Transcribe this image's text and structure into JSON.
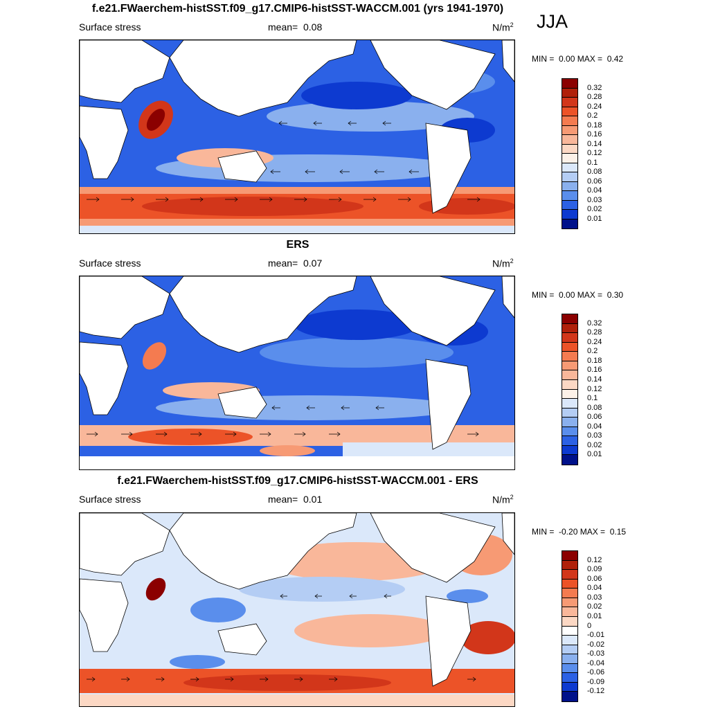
{
  "season": "JJA",
  "panels": [
    {
      "title": "f.e21.FWaerchem-histSST.f09_g17.CMIP6-histSST-WACCM.001 (yrs 1941-1970)",
      "variable": "Surface stress",
      "mean_label": "mean=",
      "mean_value": "0.08",
      "units_base": "N/m",
      "units_exp": "2",
      "min_label": "MIN =",
      "min_value": "0.00",
      "max_label": "MAX =",
      "max_value": "0.42",
      "colorbar_levels": [
        "0.32",
        "0.28",
        "0.24",
        "0.2",
        "0.18",
        "0.16",
        "0.14",
        "0.12",
        "0.1",
        "0.08",
        "0.06",
        "0.04",
        "0.03",
        "0.02",
        "0.01"
      ],
      "colorbar_colors": [
        "#8b0000",
        "#b0200a",
        "#d2361a",
        "#ec5328",
        "#f47b50",
        "#f79a74",
        "#f9b79a",
        "#fcd8c4",
        "#fcf1e8",
        "#dbe8fa",
        "#b4cdf4",
        "#8ab0ee",
        "#5a8eec",
        "#2c61e4",
        "#0d3ad0",
        "#00118a"
      ]
    },
    {
      "title": "ERS",
      "variable": "Surface stress",
      "mean_label": "mean=",
      "mean_value": "0.07",
      "units_base": "N/m",
      "units_exp": "2",
      "min_label": "MIN =",
      "min_value": "0.00",
      "max_label": "MAX =",
      "max_value": "0.30",
      "colorbar_levels": [
        "0.32",
        "0.28",
        "0.24",
        "0.2",
        "0.18",
        "0.16",
        "0.14",
        "0.12",
        "0.1",
        "0.08",
        "0.06",
        "0.04",
        "0.03",
        "0.02",
        "0.01"
      ],
      "colorbar_colors": [
        "#8b0000",
        "#b0200a",
        "#d2361a",
        "#ec5328",
        "#f47b50",
        "#f79a74",
        "#f9b79a",
        "#fcd8c4",
        "#fcf1e8",
        "#dbe8fa",
        "#b4cdf4",
        "#8ab0ee",
        "#5a8eec",
        "#2c61e4",
        "#0d3ad0",
        "#00118a"
      ]
    },
    {
      "title": "f.e21.FWaerchem-histSST.f09_g17.CMIP6-histSST-WACCM.001 - ERS",
      "variable": "Surface stress",
      "mean_label": "mean=",
      "mean_value": "0.01",
      "units_base": "N/m",
      "units_exp": "2",
      "min_label": "MIN =",
      "min_value": "-0.20",
      "max_label": "MAX =",
      "max_value": "0.15",
      "colorbar_levels": [
        "0.12",
        "0.09",
        "0.06",
        "0.04",
        "0.03",
        "0.02",
        "0.01",
        "0",
        "-0.01",
        "-0.02",
        "-0.03",
        "-0.04",
        "-0.06",
        "-0.09",
        "-0.12"
      ],
      "colorbar_colors": [
        "#8b0000",
        "#b0200a",
        "#d2361a",
        "#ec5328",
        "#f47b50",
        "#f79a74",
        "#f9b79a",
        "#fcd8c4",
        "#ffffff",
        "#dbe8fa",
        "#b4cdf4",
        "#8ab0ee",
        "#5a8eec",
        "#2c61e4",
        "#0d3ad0",
        "#00118a"
      ]
    }
  ]
}
